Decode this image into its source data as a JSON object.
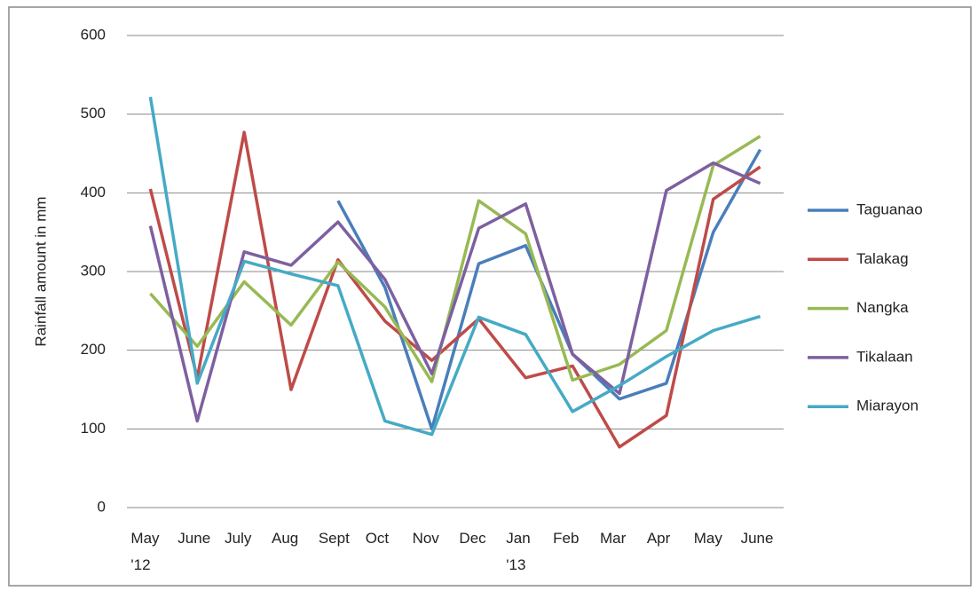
{
  "chart_data": {
    "type": "line",
    "y_label": "Rainfall amount in mm",
    "categories": [
      "May\n'12",
      "June",
      "July",
      "Aug",
      "Sept",
      "Oct",
      "Nov",
      "Dec",
      "Jan\n'13",
      "Feb",
      "Mar",
      "Apr",
      "May",
      "June"
    ],
    "series": [
      {
        "name": "Taguanao",
        "color": "#4a7ebb",
        "values": [
          null,
          null,
          null,
          null,
          390,
          280,
          100,
          310,
          333,
          195,
          138,
          158,
          350,
          455
        ]
      },
      {
        "name": "Talakag",
        "color": "#be4b48",
        "values": [
          405,
          165,
          477,
          150,
          315,
          237,
          187,
          240,
          165,
          180,
          77,
          117,
          392,
          433
        ]
      },
      {
        "name": "Nangka",
        "color": "#98b954",
        "values": [
          272,
          205,
          287,
          232,
          312,
          255,
          160,
          390,
          348,
          162,
          182,
          225,
          435,
          472
        ]
      },
      {
        "name": "Tikalaan",
        "color": "#7d60a0",
        "values": [
          358,
          110,
          325,
          308,
          363,
          290,
          170,
          355,
          386,
          195,
          145,
          403,
          438,
          412
        ]
      },
      {
        "name": "Miarayon",
        "color": "#46aac5",
        "values": [
          522,
          158,
          313,
          297,
          282,
          110,
          93,
          242,
          220,
          122,
          155,
          192,
          225,
          243
        ]
      }
    ],
    "ylim": [
      0,
      600
    ],
    "yticks": [
      0,
      100,
      200,
      300,
      400,
      500,
      600
    ],
    "grid": true,
    "legend": "right"
  }
}
